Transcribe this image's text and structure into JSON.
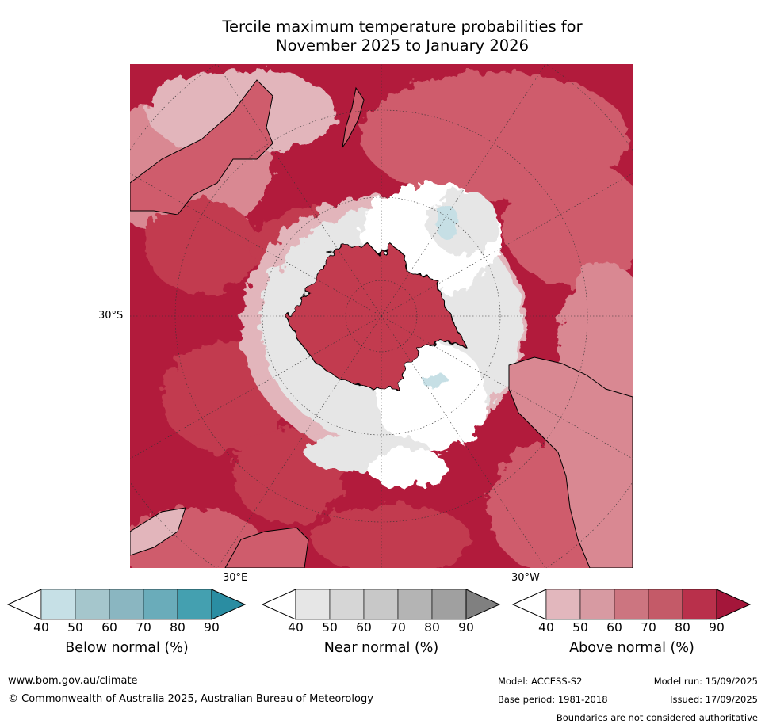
{
  "title": {
    "line1": "Tercile maximum temperature probabilities for",
    "line2": "November 2025 to January 2026"
  },
  "map": {
    "projection": "south polar stereographic",
    "lat_labels": {
      "left": "30°S"
    },
    "lon_labels": {
      "bottom_left": "30°E",
      "bottom_right": "30°W"
    },
    "colors": {
      "above_90": "#b21b3c",
      "above_80": "#c23a50",
      "above_70": "#cf5c6c",
      "above_60": "#d98892",
      "above_50": "#e2b5bb",
      "near_40": "#e6e6e6",
      "below_50": "#c6dfe5",
      "white": "#ffffff",
      "land_outline": "#000000"
    }
  },
  "legends": [
    {
      "label": "Below normal (%)",
      "ticks": [
        "40",
        "50",
        "60",
        "70",
        "80",
        "90"
      ],
      "colors": [
        "#ffffff",
        "#c6e0e6",
        "#a5c6cc",
        "#8ab6c1",
        "#6aacba",
        "#44a0b0",
        "#2a8da2"
      ]
    },
    {
      "label": "Near normal (%)",
      "ticks": [
        "40",
        "50",
        "60",
        "70",
        "80",
        "90"
      ],
      "colors": [
        "#ffffff",
        "#e6e6e6",
        "#d6d6d6",
        "#c8c8c8",
        "#b4b4b4",
        "#a0a0a0",
        "#808080"
      ]
    },
    {
      "label": "Above normal (%)",
      "ticks": [
        "40",
        "50",
        "60",
        "70",
        "80",
        "90"
      ],
      "colors": [
        "#ffffff",
        "#e2b7bd",
        "#d79aa2",
        "#cc7580",
        "#c45a68",
        "#b9304b",
        "#a4163a"
      ]
    }
  ],
  "footer": {
    "website": "www.bom.gov.au/climate",
    "copyright": "© Commonwealth of Australia 2025, Australian Bureau of Meteorology",
    "model": "Model: ACCESS-S2",
    "base_period": "Base period: 1981-2018",
    "model_run": "Model run: 15/09/2025",
    "issued": "Issued: 17/09/2025",
    "disclaimer": "Boundaries are not considered authoritative"
  }
}
